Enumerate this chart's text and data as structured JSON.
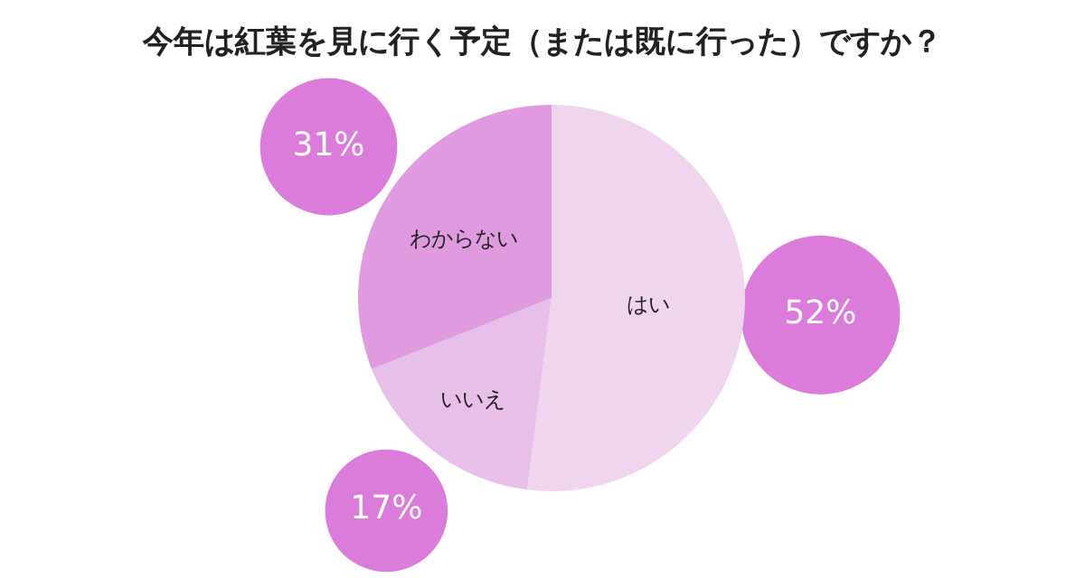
{
  "chart_data": {
    "type": "pie",
    "title": "今年は紅葉を見に行く予定（または既に行った）ですか？",
    "categories": [
      "はい",
      "いいえ",
      "わからない"
    ],
    "values": [
      52,
      17,
      31
    ],
    "colors": [
      "#f0d5ef",
      "#e8bfe8",
      "#e09be0"
    ],
    "value_labels": [
      "52%",
      "17%",
      "31%"
    ],
    "legend": false
  }
}
